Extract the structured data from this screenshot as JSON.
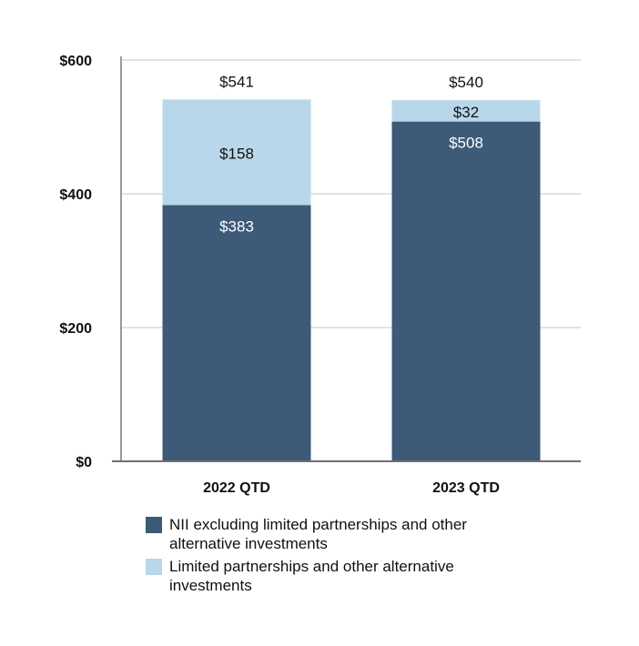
{
  "chart_data": {
    "type": "bar",
    "stacked": true,
    "categories": [
      "2022 QTD",
      "2023 QTD"
    ],
    "series": [
      {
        "name": "NII excluding limited partnerships and other alternative investments",
        "values": [
          383,
          508
        ],
        "labels": [
          "$383",
          "$508"
        ],
        "color": "#3d5a78"
      },
      {
        "name": "Limited partnerships and other alternative investments",
        "values": [
          158,
          32
        ],
        "labels": [
          "$158",
          "$32"
        ],
        "color": "#b9d7ea"
      }
    ],
    "totals": [
      541,
      540
    ],
    "total_labels": [
      "$541",
      "$540"
    ],
    "y_ticks": [
      0,
      200,
      400,
      600
    ],
    "y_tick_labels": [
      "$0",
      "$200",
      "$400",
      "$600"
    ],
    "ylim": [
      0,
      600
    ],
    "grid": true,
    "legend_position": "bottom",
    "title": "",
    "xlabel": "",
    "ylabel": ""
  }
}
